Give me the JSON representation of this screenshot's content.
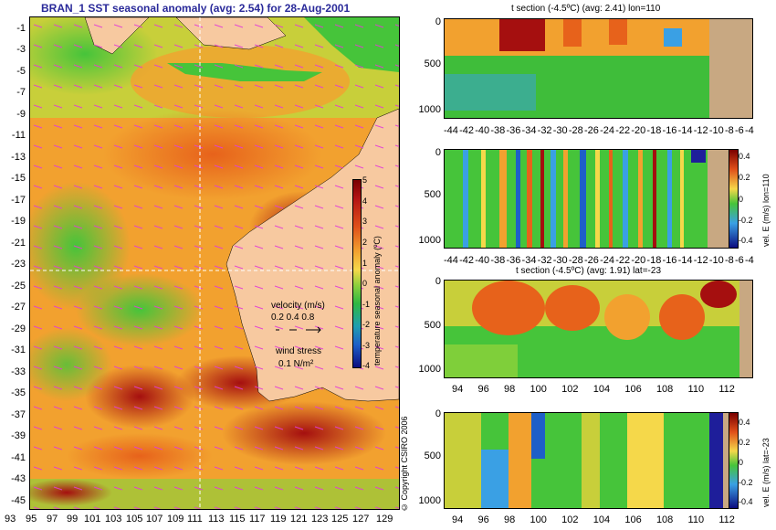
{
  "map": {
    "title": "BRAN_1  SST seasonal anomaly  (avg: 2.54)  for 28-Aug-2001",
    "lat_ticks": [
      "-1",
      "-3",
      "-5",
      "-7",
      "-9",
      "-11",
      "-13",
      "-15",
      "-17",
      "-19",
      "-21",
      "-23",
      "-25",
      "-27",
      "-29",
      "-31",
      "-33",
      "-35",
      "-37",
      "-39",
      "-41",
      "-43",
      "-45"
    ],
    "lon_ticks": [
      "93",
      "95",
      "97",
      "99",
      "101",
      "103",
      "105",
      "107",
      "109",
      "111",
      "113",
      "115",
      "117",
      "119",
      "121",
      "123",
      "125",
      "127",
      "129"
    ],
    "colorbar": {
      "ticks": [
        "5",
        "4",
        "3",
        "2",
        "1",
        "0",
        "-1",
        "-2",
        "-3",
        "-4"
      ],
      "label": "temperature seasonal anomaly (ºC)"
    },
    "legend": {
      "velocity_label": "velocity (m/s)",
      "velocity_values": "0.2 0.4 0.8",
      "wind_label": "wind stress",
      "wind_value": "0.1 N/m²"
    },
    "copyright": "© Copyright CSIRO 2006"
  },
  "panels": [
    {
      "title": "t section (-4.5ºC) (avg: 2.41) lon=110",
      "depth_ticks": [
        "0",
        "500",
        "1000"
      ],
      "x_ticks": [
        "-44",
        "-42",
        "-40",
        "-38",
        "-36",
        "-34",
        "-32",
        "-30",
        "-28",
        "-26",
        "-24",
        "-22",
        "-20",
        "-18",
        "-16",
        "-14",
        "-12",
        "-10",
        "-8",
        "-6",
        "-4"
      ],
      "colorbar_ticks": [],
      "colorbar_label": ""
    },
    {
      "title": "",
      "depth_ticks": [
        "0",
        "500",
        "1000"
      ],
      "x_ticks": [
        "-44",
        "-42",
        "-40",
        "-38",
        "-36",
        "-34",
        "-32",
        "-30",
        "-28",
        "-26",
        "-24",
        "-22",
        "-20",
        "-18",
        "-16",
        "-14",
        "-12",
        "-10",
        "-8",
        "-6",
        "-4"
      ],
      "colorbar_ticks": [
        "0.4",
        "0.2",
        "0",
        "-0.2",
        "-0.4"
      ],
      "colorbar_label": "vel. E (m/s) lon=110"
    },
    {
      "title": "t section (-4.5ºC) (avg: 1.91) lat=-23",
      "depth_ticks": [
        "0",
        "500",
        "1000"
      ],
      "x_ticks": [
        "94",
        "96",
        "98",
        "100",
        "102",
        "104",
        "106",
        "108",
        "110",
        "112"
      ],
      "colorbar_ticks": [],
      "colorbar_label": ""
    },
    {
      "title": "",
      "depth_ticks": [
        "0",
        "500",
        "1000"
      ],
      "x_ticks": [
        "94",
        "96",
        "98",
        "100",
        "102",
        "104",
        "106",
        "108",
        "110",
        "112"
      ],
      "colorbar_ticks": [
        "0.4",
        "0.2",
        "0",
        "-0.2",
        "-0.4"
      ],
      "colorbar_label": "vel. E (m/s) lat=-23"
    }
  ],
  "colors": {
    "land": "#f7c9a0",
    "warm_core": "#a50f0f",
    "warm": "#e7621b",
    "mild": "#f2a12f",
    "neutral": "#f5d84a",
    "cool": "#46c43a",
    "cold": "#3aa0e4",
    "title_blue": "#2a2a9a"
  }
}
